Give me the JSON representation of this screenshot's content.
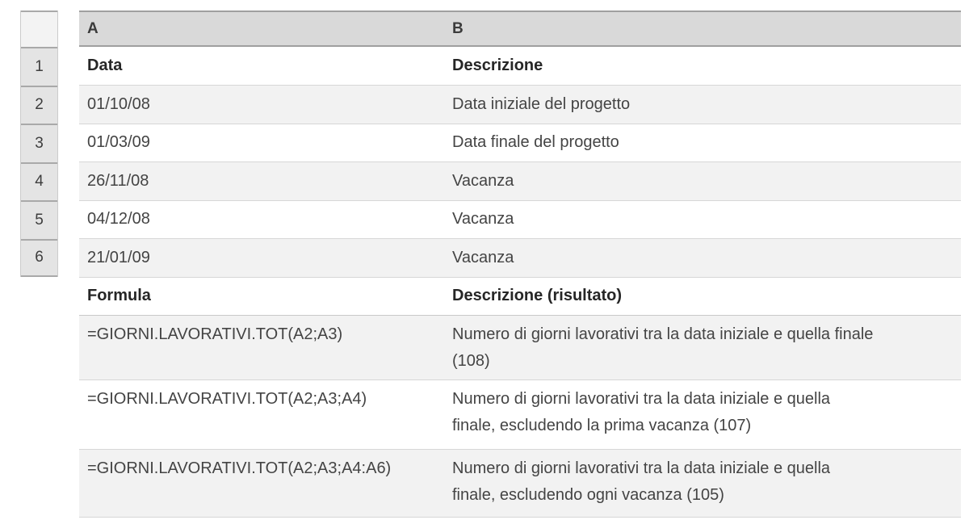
{
  "colors": {
    "header-bg": "#d9d9d9",
    "header-border": "#9f9f9f",
    "rownum-bg": "#e4e4e4",
    "rownum-corner-bg": "#f3f3f3",
    "rownum-border": "#a9a9a9",
    "zebra": "#f2f2f2",
    "row-border": "#d7d7d7",
    "text": "#444444",
    "heading-text": "#262626"
  },
  "table": {
    "column_headers": [
      "A",
      "B"
    ],
    "row_numbers": [
      "1",
      "2",
      "3",
      "4",
      "5",
      "6"
    ],
    "header_row": {
      "a": "Data",
      "b": "Descrizione"
    },
    "rows": [
      {
        "a": "01/10/08",
        "b": "Data iniziale del progetto"
      },
      {
        "a": "01/03/09",
        "b": "Data finale del progetto"
      },
      {
        "a": "26/11/08",
        "b": "Vacanza"
      },
      {
        "a": "04/12/08",
        "b": "Vacanza"
      },
      {
        "a": "21/01/09",
        "b": "Vacanza"
      }
    ],
    "formula_header": {
      "a": "Formula",
      "b": "Descrizione (risultato)"
    },
    "formula_rows": [
      {
        "formula": "=GIORNI.LAVORATIVI.TOT(A2;A3)",
        "description_line1": "Numero di giorni lavorativi tra la data iniziale e quella finale",
        "description_line2": "(108)",
        "result": "108"
      },
      {
        "formula": "=GIORNI.LAVORATIVI.TOT(A2;A3;A4)",
        "description_line1": "Numero di giorni lavorativi tra la data iniziale e quella",
        "description_line2": "finale, escludendo la prima vacanza (107)",
        "result": "107"
      },
      {
        "formula": "=GIORNI.LAVORATIVI.TOT(A2;A3;A4:A6)",
        "description_line1": "Numero di giorni lavorativi tra la data iniziale e quella",
        "description_line2": "finale, escludendo ogni vacanza (105)",
        "result": "105"
      }
    ]
  }
}
